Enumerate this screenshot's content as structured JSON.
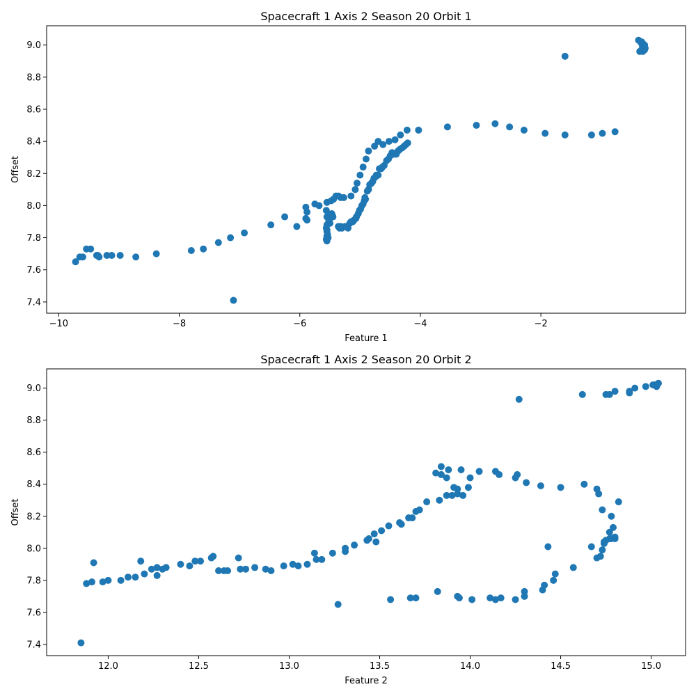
{
  "chart_data": [
    {
      "type": "scatter",
      "title": "Spacecraft 1 Axis 2 Season 20 Orbit 1",
      "xlabel": "Feature 1",
      "ylabel": "Offset",
      "xlim": [
        -10.2,
        0.4
      ],
      "ylim": [
        7.33,
        9.12
      ],
      "xticks": [
        -10,
        -8,
        -6,
        -4,
        -2
      ],
      "xtick_labels": [
        "−10",
        "−8",
        "−6",
        "−4",
        "−2"
      ],
      "yticks": [
        7.4,
        7.6,
        7.8,
        8.0,
        8.2,
        8.4,
        8.6,
        8.8,
        9.0
      ],
      "ytick_labels": [
        "7.4",
        "7.6",
        "7.8",
        "8.0",
        "8.2",
        "8.4",
        "8.6",
        "8.8",
        "9.0"
      ],
      "color": "#1f77b4",
      "grid": false,
      "points": [
        [
          -9.72,
          7.65
        ],
        [
          -9.65,
          7.68
        ],
        [
          -9.6,
          7.68
        ],
        [
          -9.54,
          7.73
        ],
        [
          -9.47,
          7.73
        ],
        [
          -9.37,
          7.69
        ],
        [
          -9.35,
          7.69
        ],
        [
          -9.33,
          7.68
        ],
        [
          -9.2,
          7.69
        ],
        [
          -9.12,
          7.69
        ],
        [
          -8.98,
          7.69
        ],
        [
          -8.72,
          7.68
        ],
        [
          -8.38,
          7.7
        ],
        [
          -7.8,
          7.72
        ],
        [
          -7.6,
          7.73
        ],
        [
          -7.35,
          7.77
        ],
        [
          -7.15,
          7.8
        ],
        [
          -7.1,
          7.41
        ],
        [
          -6.92,
          7.83
        ],
        [
          -6.48,
          7.88
        ],
        [
          -6.25,
          7.93
        ],
        [
          -6.05,
          7.87
        ],
        [
          -5.9,
          7.99
        ],
        [
          -5.88,
          7.96
        ],
        [
          -5.9,
          7.92
        ],
        [
          -5.88,
          7.91
        ],
        [
          -5.75,
          8.01
        ],
        [
          -5.68,
          8.0
        ],
        [
          -5.55,
          8.02
        ],
        [
          -5.56,
          7.97
        ],
        [
          -5.55,
          7.93
        ],
        [
          -5.53,
          7.93
        ],
        [
          -5.5,
          7.92
        ],
        [
          -5.5,
          7.89
        ],
        [
          -5.52,
          7.9
        ],
        [
          -5.55,
          7.88
        ],
        [
          -5.56,
          7.86
        ],
        [
          -5.55,
          7.85
        ],
        [
          -5.55,
          7.84
        ],
        [
          -5.54,
          7.82
        ],
        [
          -5.55,
          7.81
        ],
        [
          -5.56,
          7.79
        ],
        [
          -5.55,
          7.78
        ],
        [
          -5.53,
          7.8
        ],
        [
          -5.47,
          7.95
        ],
        [
          -5.46,
          7.94
        ],
        [
          -5.45,
          7.93
        ],
        [
          -5.48,
          8.03
        ],
        [
          -5.44,
          8.04
        ],
        [
          -5.4,
          8.06
        ],
        [
          -5.36,
          8.06
        ],
        [
          -5.32,
          8.05
        ],
        [
          -5.27,
          8.05
        ],
        [
          -5.15,
          8.06
        ],
        [
          -5.36,
          7.87
        ],
        [
          -5.34,
          7.86
        ],
        [
          -5.32,
          7.87
        ],
        [
          -5.3,
          7.86
        ],
        [
          -5.25,
          7.87
        ],
        [
          -5.22,
          7.87
        ],
        [
          -5.2,
          7.86
        ],
        [
          -5.17,
          7.89
        ],
        [
          -5.15,
          7.9
        ],
        [
          -5.12,
          7.9
        ],
        [
          -5.1,
          7.91
        ],
        [
          -5.07,
          7.92
        ],
        [
          -5.06,
          7.93
        ],
        [
          -5.03,
          7.95
        ],
        [
          -5.01,
          7.97
        ],
        [
          -4.99,
          7.98
        ],
        [
          -4.97,
          8.0
        ],
        [
          -4.95,
          8.01
        ],
        [
          -4.93,
          8.03
        ],
        [
          -4.91,
          8.04
        ],
        [
          -4.92,
          8.05
        ],
        [
          -4.88,
          8.09
        ],
        [
          -4.86,
          8.1
        ],
        [
          -4.84,
          8.13
        ],
        [
          -4.81,
          8.14
        ],
        [
          -4.79,
          8.15
        ],
        [
          -4.77,
          8.17
        ],
        [
          -4.74,
          8.18
        ],
        [
          -4.73,
          8.19
        ],
        [
          -4.7,
          8.19
        ],
        [
          -4.68,
          8.23
        ],
        [
          -4.65,
          8.23
        ],
        [
          -4.63,
          8.24
        ],
        [
          -4.6,
          8.25
        ],
        [
          -4.56,
          8.28
        ],
        [
          -4.53,
          8.29
        ],
        [
          -4.5,
          8.31
        ],
        [
          -4.47,
          8.33
        ],
        [
          -4.44,
          8.32
        ],
        [
          -4.4,
          8.32
        ],
        [
          -4.37,
          8.34
        ],
        [
          -4.34,
          8.35
        ],
        [
          -4.3,
          8.36
        ],
        [
          -4.27,
          8.37
        ],
        [
          -4.24,
          8.38
        ],
        [
          -4.21,
          8.39
        ],
        [
          -5.08,
          8.1
        ],
        [
          -5.05,
          8.14
        ],
        [
          -5.0,
          8.19
        ],
        [
          -4.95,
          8.24
        ],
        [
          -4.9,
          8.29
        ],
        [
          -4.86,
          8.34
        ],
        [
          -4.76,
          8.37
        ],
        [
          -4.7,
          8.4
        ],
        [
          -4.62,
          8.38
        ],
        [
          -4.52,
          8.4
        ],
        [
          -4.42,
          8.41
        ],
        [
          -4.33,
          8.44
        ],
        [
          -4.22,
          8.47
        ],
        [
          -4.03,
          8.47
        ],
        [
          -3.55,
          8.49
        ],
        [
          -3.07,
          8.5
        ],
        [
          -2.76,
          8.51
        ],
        [
          -2.52,
          8.49
        ],
        [
          -2.28,
          8.47
        ],
        [
          -1.93,
          8.45
        ],
        [
          -1.6,
          8.44
        ],
        [
          -1.16,
          8.44
        ],
        [
          -0.98,
          8.45
        ],
        [
          -0.77,
          8.46
        ],
        [
          -1.6,
          8.93
        ],
        [
          -0.38,
          9.03
        ],
        [
          -0.33,
          9.02
        ],
        [
          -0.31,
          9.01
        ],
        [
          -0.28,
          9.0
        ],
        [
          -0.3,
          8.99
        ],
        [
          -0.27,
          8.98
        ],
        [
          -0.33,
          8.97
        ],
        [
          -0.36,
          8.96
        ],
        [
          -0.31,
          8.96
        ],
        [
          -0.28,
          8.97
        ],
        [
          -0.32,
          9.0
        ],
        [
          -0.35,
          9.02
        ]
      ]
    },
    {
      "type": "scatter",
      "title": "Spacecraft 1 Axis 2 Season 20 Orbit 2",
      "xlabel": "Feature 2",
      "ylabel": "Offset",
      "xlim": [
        11.66,
        15.19
      ],
      "ylim": [
        7.33,
        9.12
      ],
      "xticks": [
        12.0,
        12.5,
        13.0,
        13.5,
        14.0,
        14.5,
        15.0
      ],
      "xtick_labels": [
        "12.0",
        "12.5",
        "13.0",
        "13.5",
        "14.0",
        "14.5",
        "15.0"
      ],
      "yticks": [
        7.4,
        7.6,
        7.8,
        8.0,
        8.2,
        8.4,
        8.6,
        8.8,
        9.0
      ],
      "ytick_labels": [
        "7.4",
        "7.6",
        "7.8",
        "8.0",
        "8.2",
        "8.4",
        "8.6",
        "8.8",
        "9.0"
      ],
      "color": "#1f77b4",
      "grid": false,
      "points": [
        [
          11.85,
          7.41
        ],
        [
          11.88,
          7.78
        ],
        [
          11.91,
          7.79
        ],
        [
          11.92,
          7.91
        ],
        [
          11.97,
          7.79
        ],
        [
          12.0,
          7.8
        ],
        [
          12.07,
          7.8
        ],
        [
          12.11,
          7.82
        ],
        [
          12.15,
          7.82
        ],
        [
          12.18,
          7.92
        ],
        [
          12.2,
          7.84
        ],
        [
          12.24,
          7.87
        ],
        [
          12.27,
          7.88
        ],
        [
          12.27,
          7.83
        ],
        [
          12.3,
          7.87
        ],
        [
          12.32,
          7.88
        ],
        [
          12.4,
          7.9
        ],
        [
          12.45,
          7.89
        ],
        [
          12.48,
          7.92
        ],
        [
          12.51,
          7.92
        ],
        [
          12.57,
          7.94
        ],
        [
          12.58,
          7.95
        ],
        [
          12.61,
          7.86
        ],
        [
          12.64,
          7.86
        ],
        [
          12.66,
          7.86
        ],
        [
          12.72,
          7.94
        ],
        [
          12.73,
          7.87
        ],
        [
          12.76,
          7.87
        ],
        [
          12.81,
          7.88
        ],
        [
          12.87,
          7.87
        ],
        [
          12.9,
          7.86
        ],
        [
          12.97,
          7.89
        ],
        [
          13.02,
          7.9
        ],
        [
          13.05,
          7.89
        ],
        [
          13.1,
          7.9
        ],
        [
          13.14,
          7.97
        ],
        [
          13.15,
          7.93
        ],
        [
          13.18,
          7.93
        ],
        [
          13.24,
          7.97
        ],
        [
          13.27,
          7.65
        ],
        [
          13.31,
          7.98
        ],
        [
          13.31,
          8.0
        ],
        [
          13.36,
          8.02
        ],
        [
          13.43,
          8.05
        ],
        [
          13.44,
          8.06
        ],
        [
          13.47,
          8.09
        ],
        [
          13.48,
          8.04
        ],
        [
          13.51,
          8.11
        ],
        [
          13.55,
          8.14
        ],
        [
          13.56,
          7.68
        ],
        [
          13.61,
          8.16
        ],
        [
          13.62,
          8.15
        ],
        [
          13.66,
          8.19
        ],
        [
          13.68,
          8.19
        ],
        [
          13.67,
          7.69
        ],
        [
          13.7,
          7.69
        ],
        [
          13.7,
          8.23
        ],
        [
          13.72,
          8.24
        ],
        [
          13.76,
          8.29
        ],
        [
          13.81,
          8.47
        ],
        [
          13.82,
          7.73
        ],
        [
          13.83,
          8.3
        ],
        [
          13.84,
          8.51
        ],
        [
          13.84,
          8.46
        ],
        [
          13.87,
          8.44
        ],
        [
          13.87,
          8.33
        ],
        [
          13.88,
          8.49
        ],
        [
          13.9,
          8.33
        ],
        [
          13.91,
          8.38
        ],
        [
          13.93,
          8.34
        ],
        [
          13.93,
          8.37
        ],
        [
          13.93,
          7.7
        ],
        [
          13.94,
          7.69
        ],
        [
          13.95,
          8.49
        ],
        [
          13.96,
          8.33
        ],
        [
          13.99,
          8.38
        ],
        [
          14.0,
          8.44
        ],
        [
          14.01,
          7.68
        ],
        [
          14.05,
          8.48
        ],
        [
          14.11,
          7.69
        ],
        [
          14.14,
          8.48
        ],
        [
          14.14,
          7.68
        ],
        [
          14.16,
          8.46
        ],
        [
          14.17,
          7.69
        ],
        [
          14.25,
          7.68
        ],
        [
          14.25,
          8.44
        ],
        [
          14.26,
          8.46
        ],
        [
          14.27,
          8.93
        ],
        [
          14.3,
          7.7
        ],
        [
          14.3,
          7.73
        ],
        [
          14.31,
          8.41
        ],
        [
          14.39,
          8.39
        ],
        [
          14.4,
          7.74
        ],
        [
          14.41,
          7.77
        ],
        [
          14.43,
          8.01
        ],
        [
          14.46,
          7.8
        ],
        [
          14.47,
          7.84
        ],
        [
          14.5,
          8.38
        ],
        [
          14.57,
          7.88
        ],
        [
          14.62,
          8.96
        ],
        [
          14.63,
          8.4
        ],
        [
          14.67,
          8.01
        ],
        [
          14.7,
          8.37
        ],
        [
          14.7,
          7.94
        ],
        [
          14.71,
          8.34
        ],
        [
          14.72,
          7.95
        ],
        [
          14.73,
          8.24
        ],
        [
          14.73,
          7.99
        ],
        [
          14.74,
          8.03
        ],
        [
          14.74,
          8.04
        ],
        [
          14.75,
          8.05
        ],
        [
          14.75,
          8.96
        ],
        [
          14.77,
          8.96
        ],
        [
          14.77,
          8.06
        ],
        [
          14.77,
          8.1
        ],
        [
          14.78,
          8.2
        ],
        [
          14.78,
          8.06
        ],
        [
          14.79,
          8.13
        ],
        [
          14.8,
          8.06
        ],
        [
          14.8,
          8.07
        ],
        [
          14.8,
          8.98
        ],
        [
          14.82,
          8.29
        ],
        [
          14.88,
          8.98
        ],
        [
          14.88,
          8.97
        ],
        [
          14.91,
          9.0
        ],
        [
          14.97,
          9.01
        ],
        [
          15.01,
          9.02
        ],
        [
          15.02,
          9.02
        ],
        [
          15.03,
          9.02
        ],
        [
          15.04,
          9.03
        ],
        [
          15.03,
          9.01
        ]
      ]
    }
  ]
}
